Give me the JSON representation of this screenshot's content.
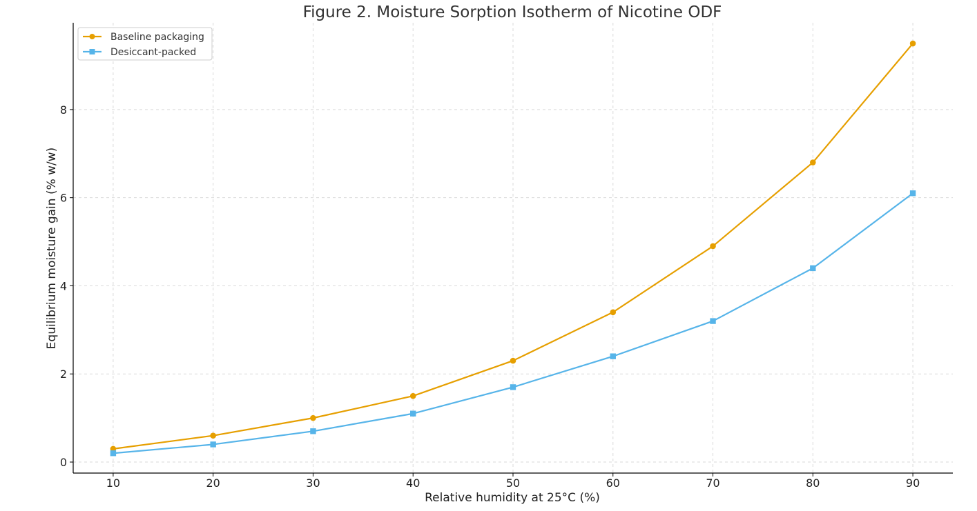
{
  "chart_data": {
    "type": "line",
    "title": "Figure 2. Moisture Sorption Isotherm of Nicotine ODF",
    "xlabel": "Relative humidity at 25°C (%)",
    "ylabel": "Equilibrium moisture gain (% w/w)",
    "x": [
      10,
      20,
      30,
      40,
      50,
      60,
      70,
      80,
      90
    ],
    "xticks": [
      10,
      20,
      30,
      40,
      50,
      60,
      70,
      80,
      90
    ],
    "yticks": [
      0,
      2,
      4,
      6,
      8
    ],
    "xlim": [
      6,
      94
    ],
    "ylim": [
      -0.25,
      9.97
    ],
    "grid": true,
    "legend_position": "top-left",
    "series": [
      {
        "name": "Baseline packaging",
        "color": "#E69F00",
        "marker": "circle",
        "values": [
          0.3,
          0.6,
          1.0,
          1.5,
          2.3,
          3.4,
          4.9,
          6.8,
          9.5
        ]
      },
      {
        "name": "Desiccant-packed",
        "color": "#56B4E9",
        "marker": "square",
        "values": [
          0.2,
          0.4,
          0.7,
          1.1,
          1.7,
          2.4,
          3.2,
          4.4,
          6.1
        ]
      }
    ]
  }
}
